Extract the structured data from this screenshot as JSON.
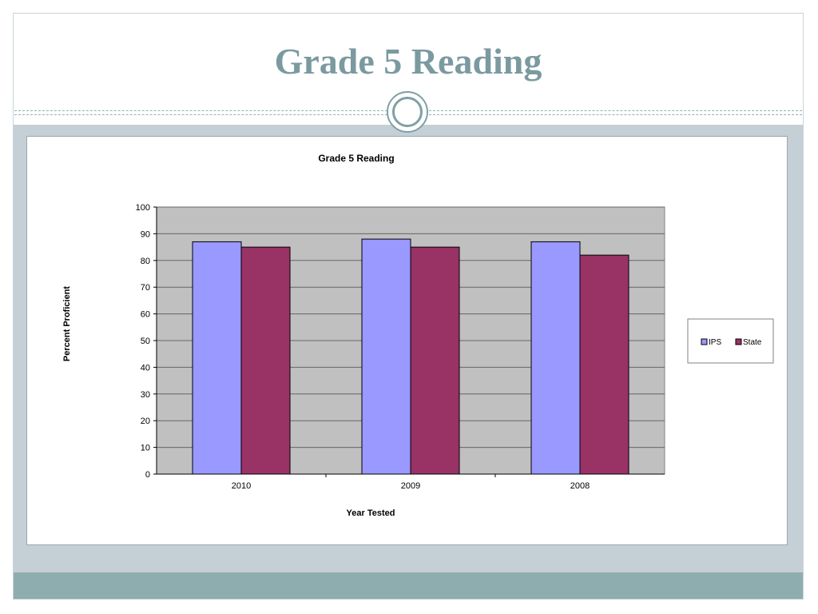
{
  "slide": {
    "title": "Grade 5 Reading"
  },
  "colors": {
    "title": "#7a9aa0",
    "band": "#c4d0d6",
    "footer_band": "#8eadae",
    "plot_area": "#c0c0c0",
    "ips": "#9999ff",
    "state": "#993366"
  },
  "chart_data": {
    "type": "bar",
    "title": "Grade 5 Reading",
    "xlabel": "Year Tested",
    "ylabel": "Percent Proficient",
    "categories": [
      "2010",
      "2009",
      "2008"
    ],
    "series": [
      {
        "name": "IPS",
        "values": [
          87,
          88,
          87
        ],
        "color": "#9999ff"
      },
      {
        "name": "State",
        "values": [
          85,
          85,
          82
        ],
        "color": "#993366"
      }
    ],
    "ylim": [
      0,
      100
    ],
    "yticks": [
      "0",
      "10",
      "20",
      "30",
      "40",
      "50",
      "60",
      "70",
      "80",
      "90",
      "100"
    ],
    "grid": true,
    "legend": "right"
  }
}
